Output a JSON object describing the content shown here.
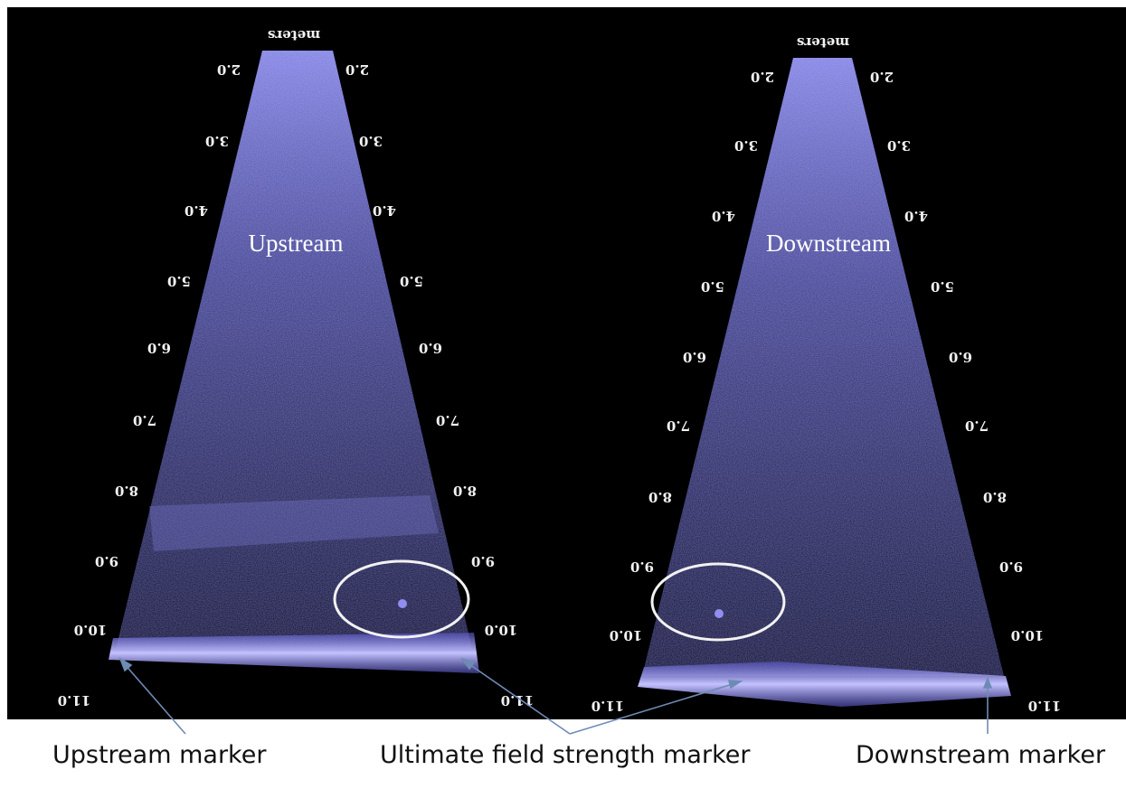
{
  "image": {
    "background_color": "#000000",
    "beam_color": "#6c6ce0",
    "seabed_color": "#a9a6ff",
    "arrow_color": "#6e8bb5",
    "caption_color": "#111111"
  },
  "range_unit": "meters",
  "range_ticks": [
    "2.0",
    "3.0",
    "4.0",
    "5.0",
    "6.0",
    "7.0",
    "8.0",
    "9.0",
    "10.0",
    "11.0"
  ],
  "panels": [
    {
      "title": "Upstream"
    },
    {
      "title": "Downstream"
    }
  ],
  "captions": {
    "upstream": "Upstream marker",
    "ultimate": "Ultimate field strength marker",
    "downstream": "Downstream marker"
  }
}
